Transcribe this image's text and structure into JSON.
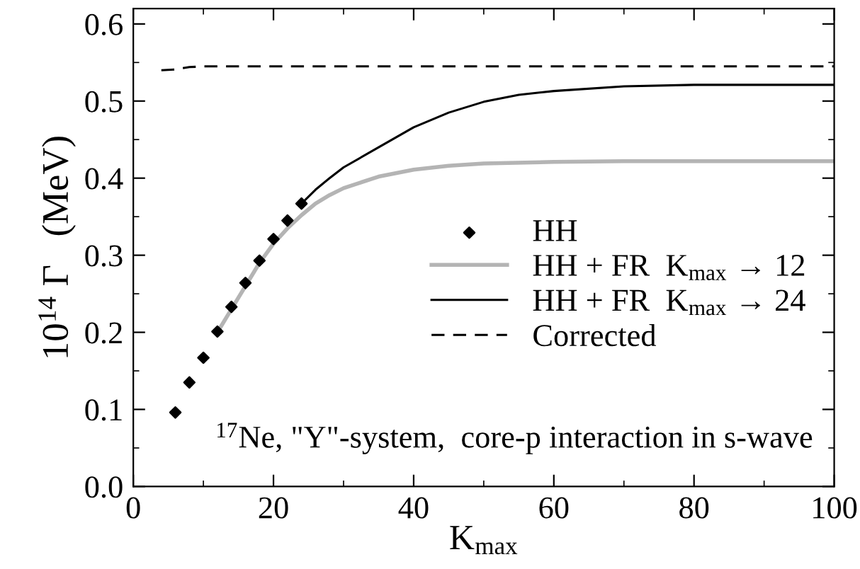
{
  "chart_data": {
    "type": "line",
    "xlabel": "K$_{max}$",
    "ylabel": "10$^{14}$ Γ   (MeV)",
    "xlim": [
      0,
      100
    ],
    "xticks": [
      0,
      20,
      40,
      60,
      80,
      100
    ],
    "ylim": [
      0.0,
      0.62
    ],
    "yticks": [
      {
        "value": 0.0,
        "label": "0.0"
      },
      0.1,
      0.2,
      0.3,
      0.4,
      0.5,
      0.6
    ],
    "grid": false,
    "legend": "right",
    "annotations": [
      "$^{17}$Ne, \"Y\"-system,  core-p interaction in s-wave"
    ],
    "series": [
      {
        "name": "HH",
        "type": "scatter",
        "marker": "diamond",
        "color": "#000000",
        "x": [
          6,
          8,
          10,
          12,
          14,
          16,
          18,
          20,
          22,
          24
        ],
        "values": [
          0.096,
          0.135,
          0.167,
          0.201,
          0.233,
          0.264,
          0.293,
          0.321,
          0.345,
          0.367
        ]
      },
      {
        "name": "HH + FR  K$_{max}$ → 12",
        "line_style": "solid",
        "color": "#b4b4b4",
        "x": [
          12,
          14,
          16,
          18,
          20,
          22,
          24,
          26,
          28,
          30,
          35,
          40,
          45,
          50,
          60,
          70,
          80,
          100
        ],
        "values": [
          0.2,
          0.23,
          0.26,
          0.29,
          0.315,
          0.335,
          0.352,
          0.367,
          0.378,
          0.387,
          0.402,
          0.411,
          0.416,
          0.419,
          0.421,
          0.422,
          0.422,
          0.422
        ]
      },
      {
        "name": "HH + FR  K$_{max}$ → 24",
        "line_style": "solid",
        "color": "#000000",
        "x": [
          24,
          26,
          28,
          30,
          35,
          40,
          45,
          50,
          55,
          60,
          70,
          80,
          100
        ],
        "values": [
          0.367,
          0.385,
          0.4,
          0.414,
          0.44,
          0.466,
          0.485,
          0.499,
          0.508,
          0.513,
          0.519,
          0.521,
          0.521
        ]
      },
      {
        "name": "Corrected",
        "line_style": "dashed",
        "color": "#000000",
        "x": [
          4,
          6,
          8,
          10,
          20,
          100
        ],
        "values": [
          0.54,
          0.541,
          0.544,
          0.545,
          0.545,
          0.545
        ]
      }
    ]
  }
}
